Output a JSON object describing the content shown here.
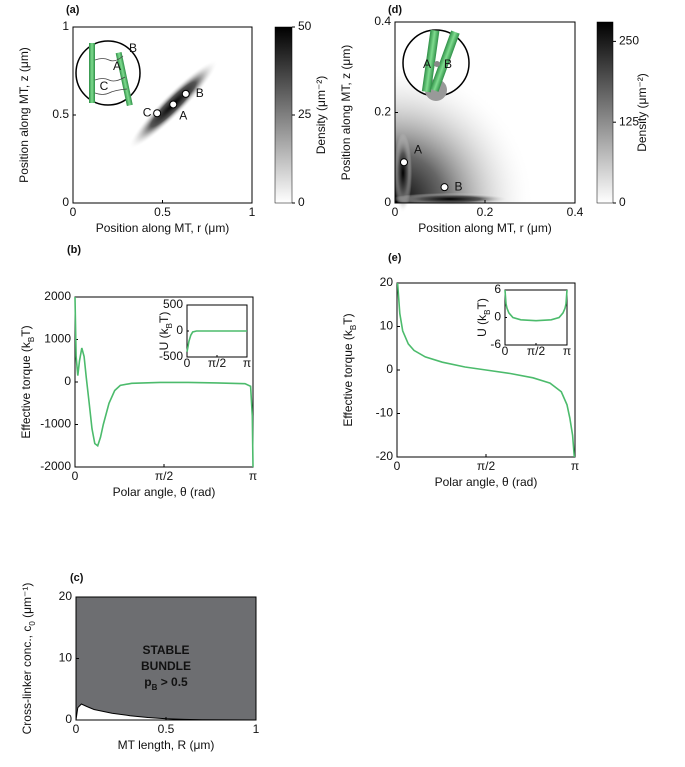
{
  "chart_data": [
    {
      "type": "heatmap",
      "panel": "(a)",
      "xlabel": "Position along MT, r (μm)",
      "ylabel": "Position along MT, z (μm)",
      "xlim": [
        0,
        1
      ],
      "ylim": [
        0,
        1
      ],
      "xticks": [
        0,
        0.5,
        1
      ],
      "yticks": [
        0,
        0.5,
        1
      ],
      "clim": [
        0,
        50
      ],
      "cticks": [
        0,
        25,
        50
      ],
      "colorbar_label": "Density (μm⁻²)",
      "points": [
        {
          "label": "C",
          "x": 0.47,
          "y": 0.51
        },
        {
          "label": "A",
          "x": 0.56,
          "y": 0.56
        },
        {
          "label": "B",
          "x": 0.63,
          "y": 0.62
        }
      ],
      "inset_labels": [
        "B",
        "A",
        "C"
      ]
    },
    {
      "type": "heatmap",
      "panel": "(d)",
      "xlabel": "Position along MT, r (μm)",
      "ylabel": "Position along MT, z (μm)",
      "xlim": [
        0,
        0.4
      ],
      "ylim": [
        0,
        0.4
      ],
      "xticks": [
        0,
        0.2,
        0.4
      ],
      "yticks": [
        0,
        0.2,
        0.4
      ],
      "clim": [
        0,
        280
      ],
      "cticks": [
        0,
        125,
        250
      ],
      "colorbar_label": "Density (μm⁻²)",
      "points": [
        {
          "label": "A",
          "x": 0.02,
          "y": 0.09
        },
        {
          "label": "B",
          "x": 0.11,
          "y": 0.035
        }
      ],
      "inset_labels": [
        "A",
        "B"
      ]
    },
    {
      "type": "line",
      "panel": "(b)",
      "xlabel": "Polar angle, θ (rad)",
      "ylabel": [
        "Effective torque (k",
        "B",
        "T)"
      ],
      "xlim": [
        0,
        3.1416
      ],
      "ylim": [
        -2000,
        2000
      ],
      "xticks": [
        0,
        {
          "value": 1.5708,
          "label": "π/2"
        },
        {
          "value": 3.1416,
          "label": "π"
        }
      ],
      "yticks": [
        -2000,
        -1000,
        0,
        1000,
        2000
      ],
      "color": "#4cbb6c",
      "x": [
        0,
        0.02,
        0.05,
        0.08,
        0.12,
        0.16,
        0.2,
        0.25,
        0.3,
        0.35,
        0.4,
        0.45,
        0.5,
        0.6,
        0.7,
        0.8,
        1.0,
        1.5,
        2.0,
        2.5,
        3.0,
        3.1,
        3.13,
        3.1416
      ],
      "values": [
        2000,
        600,
        150,
        500,
        800,
        600,
        100,
        -500,
        -1100,
        -1450,
        -1500,
        -1300,
        -1000,
        -500,
        -200,
        -80,
        -30,
        -10,
        -10,
        -20,
        -40,
        -100,
        -800,
        -2000
      ],
      "inset": {
        "ylabel": [
          "U (k",
          "B",
          "T)"
        ],
        "xlim": [
          0,
          3.1416
        ],
        "ylim": [
          -500,
          500
        ],
        "xticks": [
          0,
          {
            "value": 1.5708,
            "label": "π/2"
          },
          {
            "value": 3.1416,
            "label": "π"
          }
        ],
        "yticks": [
          -500,
          0,
          500
        ],
        "x": [
          0,
          0.05,
          0.1,
          0.2,
          0.3,
          0.5,
          1,
          2,
          3,
          3.1416
        ],
        "values": [
          -400,
          -300,
          -200,
          -80,
          -20,
          0,
          0,
          0,
          0,
          0
        ]
      }
    },
    {
      "type": "line",
      "panel": "(e)",
      "xlabel": "Polar angle, θ (rad)",
      "ylabel": [
        "Effective torque (k",
        "B",
        "T)"
      ],
      "xlim": [
        0,
        3.1416
      ],
      "ylim": [
        -20,
        20
      ],
      "xticks": [
        0,
        {
          "value": 1.5708,
          "label": "π/2"
        },
        {
          "value": 3.1416,
          "label": "π"
        }
      ],
      "yticks": [
        -20,
        -10,
        0,
        10,
        20
      ],
      "color": "#4cbb6c",
      "x": [
        0.01,
        0.05,
        0.1,
        0.2,
        0.3,
        0.5,
        0.8,
        1.2,
        1.5708,
        2,
        2.4,
        2.7,
        2.9,
        3.0,
        3.05,
        3.1,
        3.13
      ],
      "values": [
        20,
        13,
        9,
        6,
        4.5,
        3,
        1.8,
        0.7,
        0,
        -0.8,
        -1.8,
        -3,
        -5,
        -8,
        -11,
        -15,
        -20
      ],
      "inset": {
        "ylabel": [
          "U (k",
          "B",
          "T)"
        ],
        "xlim": [
          0,
          3.1416
        ],
        "ylim": [
          -6,
          6
        ],
        "xticks": [
          0,
          {
            "value": 1.5708,
            "label": "π/2"
          },
          {
            "value": 3.1416,
            "label": "π"
          }
        ],
        "yticks": [
          -6,
          0,
          6
        ],
        "x": [
          0,
          0.05,
          0.1,
          0.2,
          0.4,
          0.8,
          1.5708,
          2.34,
          2.74,
          2.94,
          3.04,
          3.09,
          3.1416
        ],
        "values": [
          6,
          3,
          2,
          1,
          0,
          -0.5,
          -0.7,
          -0.5,
          0,
          1,
          2,
          3,
          6
        ]
      }
    },
    {
      "type": "area",
      "panel": "(c)",
      "xlabel": "MT length, R (μm)",
      "ylabel": [
        "Cross-linker conc., c",
        "0",
        " (μm⁻¹)"
      ],
      "xlim": [
        0,
        1
      ],
      "ylim": [
        0,
        20
      ],
      "xticks": [
        0,
        0.5,
        1
      ],
      "yticks": [
        0,
        10,
        20
      ],
      "color": "#6d6e71",
      "x": [
        0,
        0.01,
        0.03,
        0.06,
        0.1,
        0.2,
        0.3,
        0.4,
        0.5,
        0.6,
        0.7,
        1
      ],
      "values": [
        0,
        2,
        2.6,
        2.2,
        1.7,
        1.1,
        0.7,
        0.4,
        0.2,
        0.1,
        0.05,
        0
      ],
      "annotation": [
        "STABLE",
        "BUNDLE"
      ],
      "annotation_condition": [
        "p",
        "B",
        " > 0.5"
      ]
    }
  ]
}
